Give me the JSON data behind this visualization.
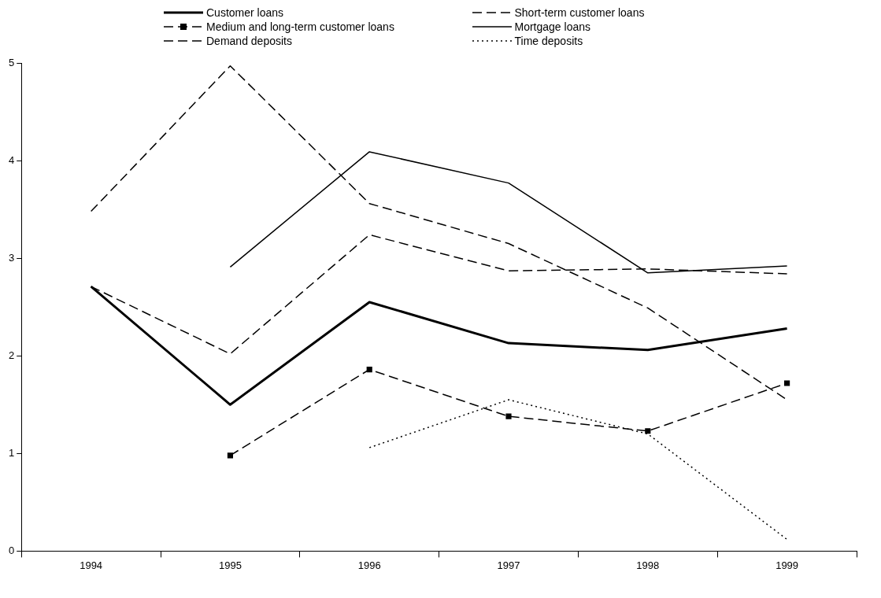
{
  "chart_data": {
    "type": "line",
    "categories": [
      "1994",
      "1995",
      "1996",
      "1997",
      "1998",
      "1999"
    ],
    "series": [
      {
        "name": "Customer loans",
        "color": "#000000",
        "line_style": "solid",
        "marker": "none",
        "values": [
          2.71,
          1.5,
          2.55,
          2.13,
          2.06,
          2.28
        ]
      },
      {
        "name": "Short-term customer loans",
        "color": "#000000",
        "line_style": "dashed",
        "marker": "none",
        "values": [
          2.71,
          2.02,
          3.24,
          2.87,
          2.89,
          2.84
        ]
      },
      {
        "name": "Medium and long-term customer loans",
        "color": "#000000",
        "line_style": "dashed",
        "marker": "square",
        "values": [
          null,
          0.98,
          1.86,
          1.38,
          1.23,
          1.72
        ]
      },
      {
        "name": "Mortgage loans",
        "color": "#000000",
        "line_style": "solid",
        "marker": "none",
        "values": [
          null,
          2.91,
          4.09,
          3.77,
          2.85,
          2.92
        ]
      },
      {
        "name": "Demand deposits",
        "color": "#000000",
        "line_style": "dashed",
        "marker": "none",
        "values": [
          3.48,
          4.97,
          3.56,
          3.15,
          2.49,
          1.55
        ]
      },
      {
        "name": "Time deposits",
        "color": "#000000",
        "line_style": "dotted",
        "marker": "none",
        "values": [
          null,
          null,
          1.06,
          1.55,
          1.2,
          0.12
        ]
      }
    ],
    "ylim": [
      0,
      5
    ],
    "yticks": [
      0,
      1,
      2,
      3,
      4,
      5
    ],
    "grid": false,
    "legend": "top"
  }
}
